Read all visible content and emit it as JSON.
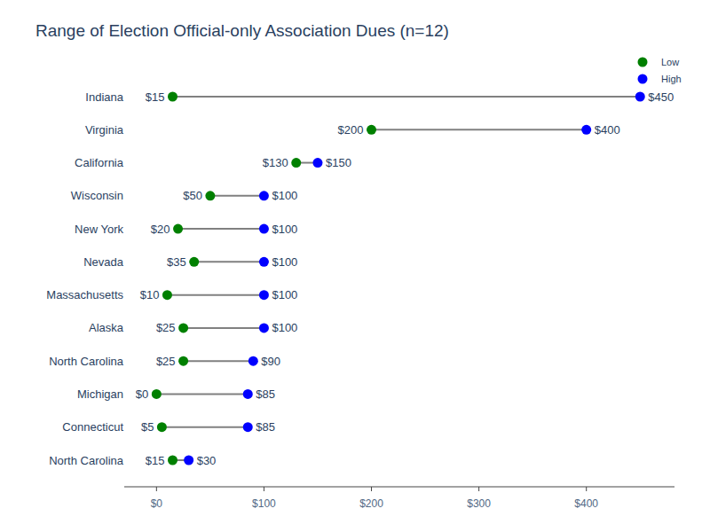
{
  "chart_data": {
    "type": "dumbbell",
    "orientation": "horizontal",
    "title": "Range of Election Official-only Association Dues (n=12)",
    "categories": [
      "Indiana",
      "Virginia",
      "California",
      "Wisconsin",
      "New York",
      "Nevada",
      "Massachusetts",
      "Alaska",
      "North Carolina",
      "Michigan",
      "Connecticut",
      "North Carolina"
    ],
    "series": [
      {
        "name": "Low",
        "color": "#008000",
        "marker": "circle",
        "values": [
          15,
          200,
          130,
          50,
          20,
          35,
          10,
          25,
          25,
          0,
          5,
          15
        ],
        "value_labels": [
          "$15",
          "$200",
          "$130",
          "$50",
          "$20",
          "$35",
          "$10",
          "$25",
          "$25",
          "$0",
          "$5",
          "$15"
        ]
      },
      {
        "name": "High",
        "color": "#0000ff",
        "marker": "circle",
        "values": [
          450,
          400,
          150,
          100,
          100,
          100,
          100,
          100,
          90,
          85,
          85,
          30
        ],
        "value_labels": [
          "$450",
          "$400",
          "$150",
          "$100",
          "$100",
          "$100",
          "$100",
          "$100",
          "$90",
          "$85",
          "$85",
          "$30"
        ]
      }
    ],
    "xlim": [
      -30,
      482
    ],
    "xticks": [
      {
        "value": 0,
        "label": "$0"
      },
      {
        "value": 100,
        "label": "$100"
      },
      {
        "value": 200,
        "label": "$200"
      },
      {
        "value": 300,
        "label": "$300"
      },
      {
        "value": 400,
        "label": "$400"
      }
    ],
    "grid": false,
    "legend": "top right",
    "data_labels": true
  }
}
